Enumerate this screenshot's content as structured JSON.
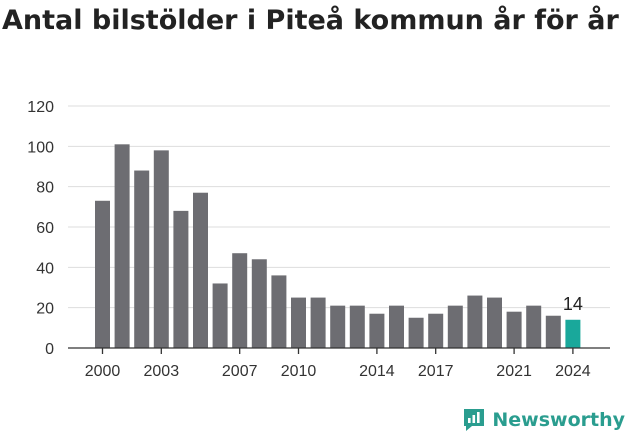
{
  "title": "Antal bilstölder i Piteå kommun år för år",
  "brand": "Newsworthy",
  "colors": {
    "bar": "#6d6d72",
    "highlight": "#19a89b",
    "grid": "#dddddd",
    "axis": "#333333",
    "text": "#333333"
  },
  "chart_data": {
    "type": "bar",
    "categories": [
      "2000",
      "2001",
      "2002",
      "2003",
      "2004",
      "2005",
      "2006",
      "2007",
      "2008",
      "2009",
      "2010",
      "2011",
      "2012",
      "2013",
      "2014",
      "2015",
      "2016",
      "2017",
      "2018",
      "2019",
      "2020",
      "2021",
      "2022",
      "2023",
      "2024"
    ],
    "values": [
      73,
      101,
      88,
      98,
      68,
      77,
      32,
      47,
      44,
      36,
      25,
      25,
      21,
      21,
      17,
      21,
      15,
      17,
      21,
      26,
      25,
      18,
      21,
      16,
      14
    ],
    "x_tick_labels": [
      "2000",
      "2003",
      "2007",
      "2010",
      "2014",
      "2017",
      "2021",
      "2024"
    ],
    "y_ticks": [
      0,
      20,
      40,
      60,
      80,
      100,
      120
    ],
    "ylim": [
      0,
      120
    ],
    "highlight_category": "2024",
    "highlight_label": "14",
    "grid": true,
    "legend": "none"
  }
}
